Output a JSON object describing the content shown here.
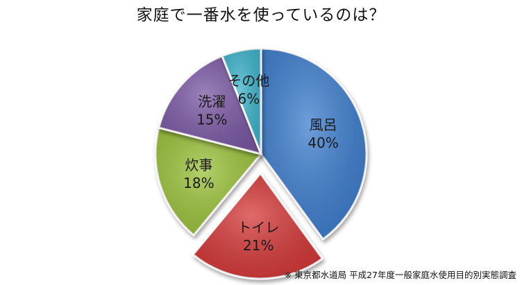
{
  "chart_data": {
    "type": "pie",
    "title": "家庭で一番水を使っているのは？",
    "categories": [
      "風呂",
      "トイレ",
      "炊事",
      "洗濯",
      "その他"
    ],
    "values": [
      40,
      21,
      18,
      15,
      6
    ],
    "labels": [
      "40%",
      "21%",
      "18%",
      "15%",
      "6%"
    ],
    "colors": [
      "#3f7fcf",
      "#d63a3a",
      "#9cc33c",
      "#7c5aa6",
      "#3eb5cc"
    ],
    "exploded": [
      "トイレ"
    ],
    "start_angle_deg": 0,
    "direction": "clockwise"
  },
  "source_note": "※ 東京都水道局 平成27年度一般家庭水使用目的別実態調査"
}
